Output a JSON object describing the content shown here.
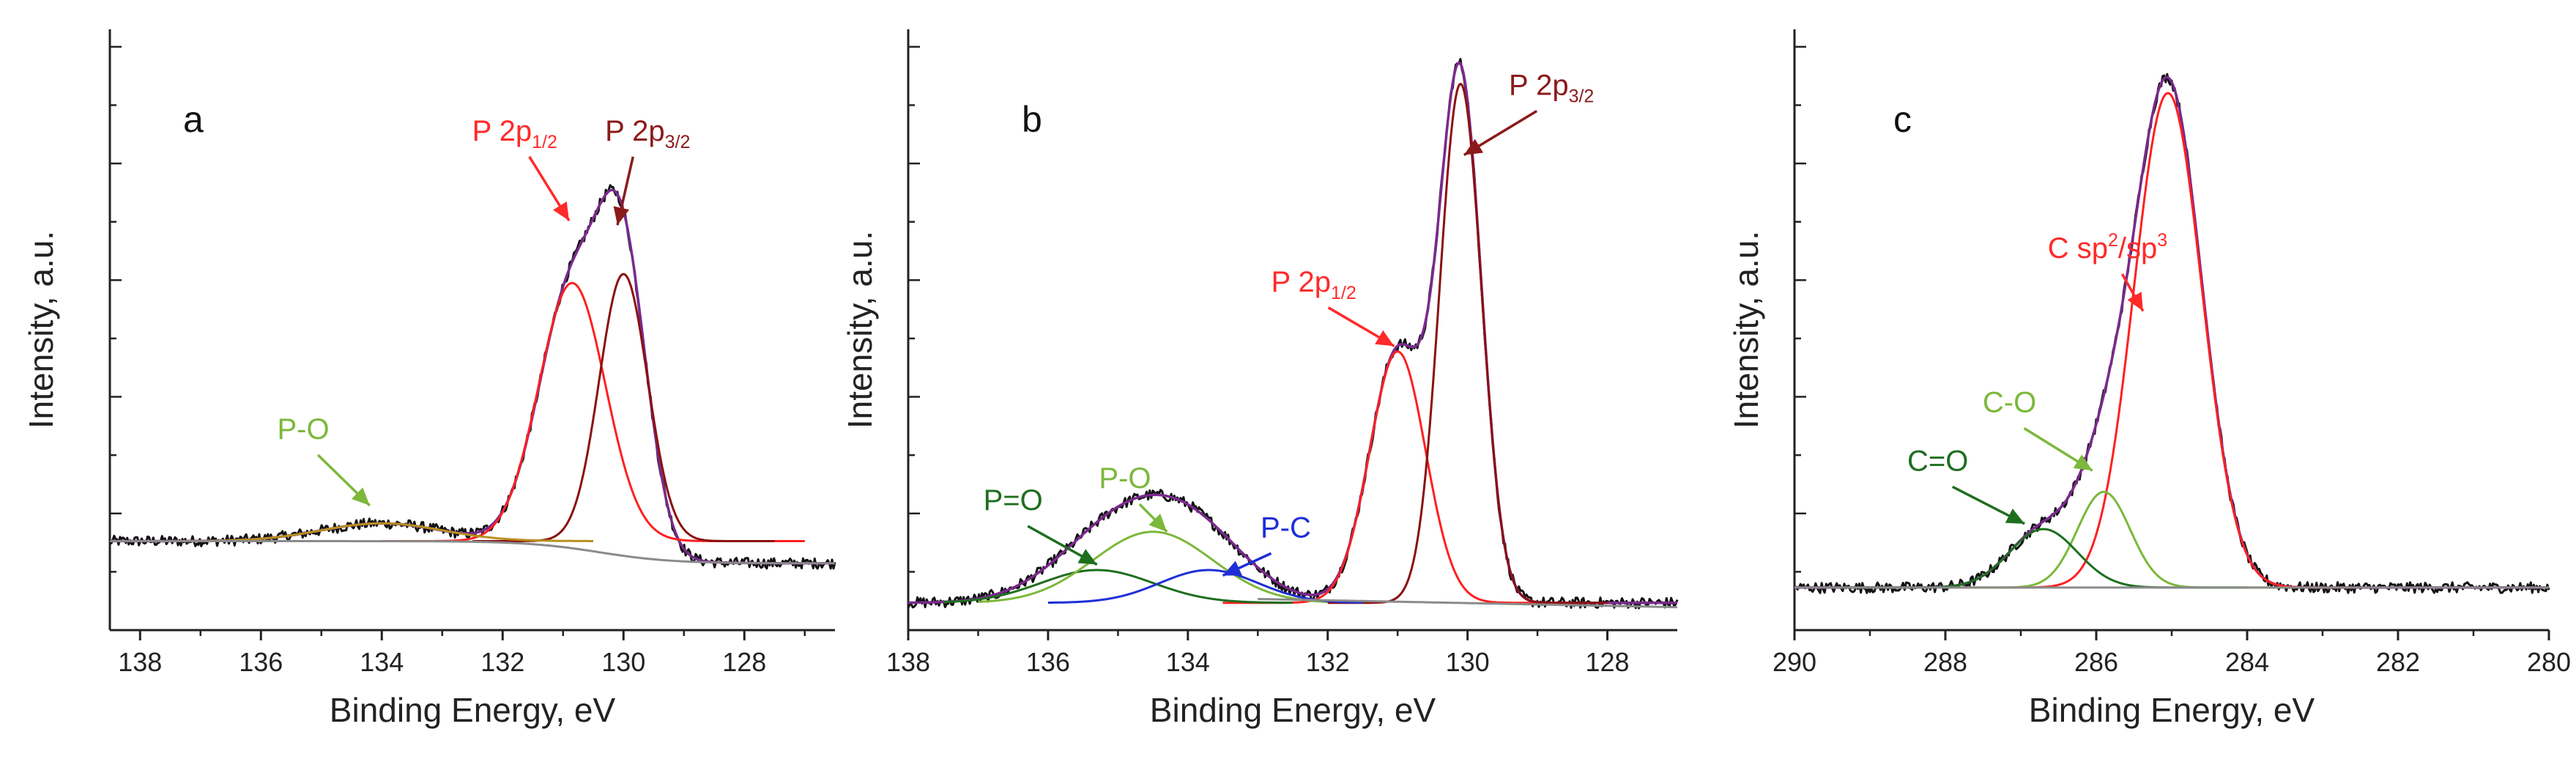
{
  "chart_data": [
    {
      "type": "line",
      "panel_label": "a",
      "xlabel": "Binding Energy, eV",
      "ylabel": "Intensity, a.u.",
      "xlim": [
        138.5,
        126.5
      ],
      "ylim": [
        -0.2,
        1.15
      ],
      "x_ticks": [
        "138",
        "136",
        "134",
        "132",
        "130",
        "128"
      ],
      "x_tick_values": [
        138,
        136,
        134,
        132,
        130,
        128
      ],
      "annotations": [
        {
          "main": "P 2p",
          "sub": "1/2",
          "sup": "",
          "color": "#ff2a2a",
          "x": 131.8,
          "y": 0.9,
          "tx": 130.9,
          "ty": 0.72
        },
        {
          "main": "P 2p",
          "sub": "3/2",
          "sup": "",
          "color": "#8b1a1a",
          "x": 129.6,
          "y": 0.9,
          "tx": 130.1,
          "ty": 0.71
        },
        {
          "main": "P-O",
          "sub": "",
          "sup": "",
          "color": "#7cb83b",
          "x": 135.3,
          "y": 0.23,
          "tx": 134.2,
          "ty": 0.08
        }
      ],
      "series": [
        {
          "name": "raw",
          "color": "#111111",
          "width": 3,
          "peaks": [
            [
              130.85,
              0.58,
              0.55
            ],
            [
              130.0,
              0.6,
              0.4
            ],
            [
              134.0,
              0.04,
              1.0
            ]
          ],
          "noise": 0.012,
          "base": "step",
          "x": [
            138.5,
            126.5
          ]
        },
        {
          "name": "envelope",
          "color": "#7a2a8c",
          "width": 3.5,
          "peaks": [
            [
              130.85,
              0.58,
              0.55
            ],
            [
              130.0,
              0.6,
              0.4
            ],
            [
              134.0,
              0.04,
              1.0
            ]
          ],
          "noise": 0.0,
          "base": "step",
          "x": [
            138.5,
            126.5
          ]
        },
        {
          "name": "P 2p1/2",
          "color": "#ff2020",
          "width": 3,
          "peaks": [
            [
              130.85,
              0.58,
              0.55
            ]
          ],
          "noise": 0,
          "base": "flat",
          "x": [
            134.0,
            127.0
          ]
        },
        {
          "name": "P 2p3/2",
          "color": "#8b1010",
          "width": 3,
          "peaks": [
            [
              130.0,
              0.6,
              0.4
            ]
          ],
          "noise": 0,
          "base": "flat",
          "x": [
            132.5,
            127.5
          ]
        },
        {
          "name": "P-O",
          "color": "#b89020",
          "width": 3,
          "peaks": [
            [
              134.0,
              0.04,
              1.0
            ]
          ],
          "noise": 0,
          "base": "flat",
          "x": [
            137.5,
            130.5
          ]
        },
        {
          "name": "background",
          "color": "#8a8a8a",
          "width": 3,
          "peaks": [],
          "noise": 0,
          "base": "step",
          "x": [
            138.5,
            126.5
          ]
        }
      ]
    },
    {
      "type": "line",
      "panel_label": "b",
      "xlabel": "Binding Energy, eV",
      "ylabel": "Intensity, a.u.",
      "xlim": [
        138.0,
        127.0
      ],
      "ylim": [
        -0.05,
        1.05
      ],
      "x_ticks": [
        "138",
        "136",
        "134",
        "132",
        "130",
        "128"
      ],
      "x_tick_values": [
        138,
        136,
        134,
        132,
        130,
        128
      ],
      "annotations": [
        {
          "main": "P 2p",
          "sub": "3/2",
          "sup": "",
          "color": "#8b1a1a",
          "x": 128.8,
          "y": 0.93,
          "tx": 130.05,
          "ty": 0.82
        },
        {
          "main": "P 2p",
          "sub": "1/2",
          "sup": "",
          "color": "#ff2a2a",
          "x": 132.2,
          "y": 0.57,
          "tx": 131.05,
          "ty": 0.47
        },
        {
          "main": "P=O",
          "sub": "",
          "sup": "",
          "color": "#1f6e1f",
          "x": 136.5,
          "y": 0.17,
          "tx": 135.3,
          "ty": 0.07
        },
        {
          "main": "P-O",
          "sub": "",
          "sup": "",
          "color": "#7cb83b",
          "x": 134.9,
          "y": 0.21,
          "tx": 134.3,
          "ty": 0.13
        },
        {
          "main": "P-C",
          "sub": "",
          "sup": "",
          "color": "#1e2fd6",
          "x": 132.6,
          "y": 0.12,
          "tx": 133.5,
          "ty": 0.05
        }
      ],
      "series": [
        {
          "name": "raw",
          "color": "#111111",
          "width": 3,
          "peaks": [
            [
              131.0,
              0.46,
              0.4
            ],
            [
              130.1,
              0.95,
              0.3
            ],
            [
              135.3,
              0.06,
              0.8
            ],
            [
              134.5,
              0.13,
              0.85
            ],
            [
              133.7,
              0.06,
              0.7
            ]
          ],
          "noise": 0.01,
          "base": "flat",
          "x": [
            138.0,
            127.0
          ]
        },
        {
          "name": "envelope",
          "color": "#7a2a8c",
          "width": 3.5,
          "peaks": [
            [
              131.0,
              0.46,
              0.4
            ],
            [
              130.1,
              0.95,
              0.3
            ],
            [
              135.3,
              0.06,
              0.8
            ],
            [
              134.5,
              0.13,
              0.85
            ],
            [
              133.7,
              0.06,
              0.7
            ]
          ],
          "noise": 0.0,
          "base": "flat",
          "x": [
            138.0,
            127.0
          ]
        },
        {
          "name": "P 2p1/2",
          "color": "#ff2020",
          "width": 3,
          "peaks": [
            [
              131.0,
              0.46,
              0.4
            ]
          ],
          "noise": 0,
          "base": "flat",
          "x": [
            133.5,
            128.5
          ]
        },
        {
          "name": "P 2p3/2",
          "color": "#8b1010",
          "width": 3,
          "peaks": [
            [
              130.1,
              0.95,
              0.3
            ]
          ],
          "noise": 0,
          "base": "flat",
          "x": [
            132.0,
            128.0
          ]
        },
        {
          "name": "P=O",
          "color": "#1f6e1f",
          "width": 3,
          "peaks": [
            [
              135.3,
              0.06,
              0.8
            ]
          ],
          "noise": 0,
          "base": "flat",
          "x": [
            137.5,
            132.5
          ]
        },
        {
          "name": "P-O",
          "color": "#7cb83b",
          "width": 3,
          "peaks": [
            [
              134.5,
              0.13,
              0.85
            ]
          ],
          "noise": 0,
          "base": "flat",
          "x": [
            137.0,
            132.0
          ]
        },
        {
          "name": "P-C",
          "color": "#1e2fd6",
          "width": 3,
          "peaks": [
            [
              133.7,
              0.06,
              0.7
            ]
          ],
          "noise": 0,
          "base": "flat",
          "x": [
            136.0,
            131.5
          ]
        },
        {
          "name": "background",
          "color": "#8a8a8a",
          "width": 3,
          "peaks": [],
          "noise": 0,
          "base": "flat",
          "x": [
            133.0,
            127.0
          ]
        }
      ]
    },
    {
      "type": "line",
      "panel_label": "c",
      "xlabel": "Binding Energy, eV",
      "ylabel": "Intensity, a.u.",
      "xlim": [
        290.0,
        280.0
      ],
      "ylim": [
        -0.08,
        1.05
      ],
      "x_ticks": [
        "290",
        "288",
        "286",
        "284",
        "282",
        "280"
      ],
      "x_tick_values": [
        290,
        288,
        286,
        284,
        282,
        280
      ],
      "annotations": [
        {
          "main": "C sp",
          "sub": "",
          "sup": "2",
          "tail": "/sp",
          "sup2": "3",
          "color": "#ff2a2a",
          "x": 285.85,
          "y": 0.62,
          "tx": 285.38,
          "ty": 0.52
        },
        {
          "main": "C-O",
          "sub": "",
          "sup": "",
          "color": "#7cb83b",
          "x": 287.15,
          "y": 0.33,
          "tx": 286.05,
          "ty": 0.22
        },
        {
          "main": "C=O",
          "sub": "",
          "sup": "",
          "color": "#1f6e1f",
          "x": 288.1,
          "y": 0.22,
          "tx": 286.95,
          "ty": 0.12
        }
      ],
      "series": [
        {
          "name": "raw",
          "color": "#111111",
          "width": 3,
          "peaks": [
            [
              285.05,
              0.95,
              0.45
            ],
            [
              285.9,
              0.18,
              0.35
            ],
            [
              286.7,
              0.11,
              0.45
            ]
          ],
          "noise": 0.01,
          "base": "flat",
          "x": [
            290.0,
            280.0
          ]
        },
        {
          "name": "envelope",
          "color": "#7a2a8c",
          "width": 3.5,
          "peaks": [
            [
              285.05,
              0.95,
              0.45
            ],
            [
              285.9,
              0.18,
              0.35
            ],
            [
              286.7,
              0.11,
              0.45
            ]
          ],
          "noise": 0.0,
          "base": "flat",
          "x": [
            290.0,
            280.0
          ]
        },
        {
          "name": "C sp2/sp3",
          "color": "#ff2020",
          "width": 3,
          "peaks": [
            [
              285.05,
              0.93,
              0.45
            ]
          ],
          "noise": 0,
          "base": "flat",
          "x": [
            288.0,
            282.5
          ]
        },
        {
          "name": "C-O",
          "color": "#7cb83b",
          "width": 3,
          "peaks": [
            [
              285.9,
              0.18,
              0.35
            ]
          ],
          "noise": 0,
          "base": "flat",
          "x": [
            288.5,
            283.5
          ]
        },
        {
          "name": "C=O",
          "color": "#1f6e1f",
          "width": 3,
          "peaks": [
            [
              286.7,
              0.11,
              0.45
            ]
          ],
          "noise": 0,
          "base": "flat",
          "x": [
            289.5,
            284.0
          ]
        },
        {
          "name": "background",
          "color": "#8a8a8a",
          "width": 3,
          "peaks": [],
          "noise": 0,
          "base": "flat",
          "x": [
            290.0,
            280.0
          ]
        }
      ]
    }
  ]
}
